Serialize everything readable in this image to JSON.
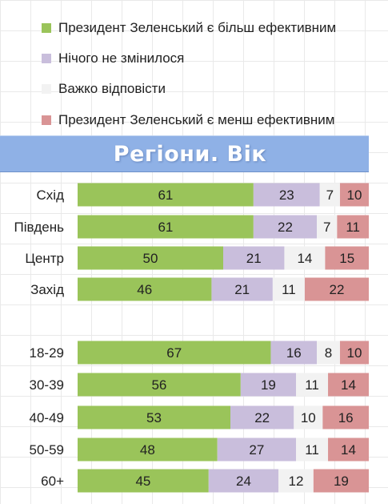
{
  "legend": {
    "items": [
      {
        "label": "Президент Зеленський є більш ефективним",
        "color": "#9ac45a"
      },
      {
        "label": "Нічого не змінилося",
        "color": "#c9bedc"
      },
      {
        "label": "Важко відповісти",
        "color": "#f2f2f2"
      },
      {
        "label": "Президент Зеленський є менш ефективним",
        "color": "#d99495"
      }
    ]
  },
  "banner": {
    "title": "Регіони. Вік"
  },
  "chart_data": {
    "type": "bar",
    "orientation": "horizontal",
    "stacked": true,
    "categories": [
      "Схід",
      "Південь",
      "Центр",
      "Захід",
      "18-29",
      "30-39",
      "40-49",
      "50-59",
      "60+"
    ],
    "series": [
      {
        "name": "Президент Зеленський є більш ефективним",
        "color": "#9ac45a",
        "values": [
          61,
          61,
          50,
          46,
          67,
          56,
          53,
          48,
          45
        ]
      },
      {
        "name": "Нічого не змінилося",
        "color": "#c9bedc",
        "values": [
          23,
          22,
          21,
          21,
          16,
          19,
          22,
          27,
          24
        ]
      },
      {
        "name": "Важко відповісти",
        "color": "#f2f2f2",
        "values": [
          7,
          7,
          14,
          11,
          8,
          11,
          10,
          11,
          12
        ]
      },
      {
        "name": "Президент Зеленський є менш ефективним",
        "color": "#d99495",
        "values": [
          10,
          11,
          15,
          22,
          10,
          14,
          16,
          14,
          19
        ]
      }
    ],
    "xlim": [
      0,
      100
    ],
    "data_labels": true,
    "grid": true,
    "legend": "top"
  }
}
